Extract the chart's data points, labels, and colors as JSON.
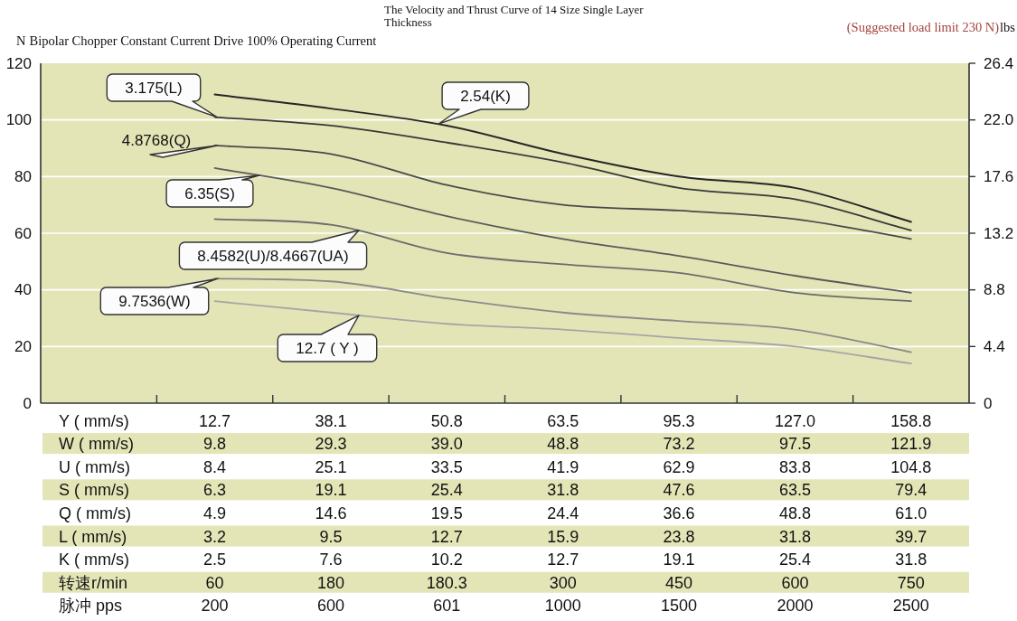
{
  "chart_data": {
    "type": "line",
    "title": "The Velocity and Thrust Curve of 14 Size Single Layer Thickness",
    "subtitle": "Bipolar Chopper Constant Current Drive 100% Operating Current",
    "ylabel": "N",
    "y2label": "lbs",
    "annotations": [
      "(Suggested load limit 230 N)"
    ],
    "categories": [
      "Y ( mm/s)\nW ( mm/s)\nU ( mm/s)\nS ( mm/s)\nQ ( mm/s)\nL ( mm/s)\nK ( mm/s)\n转速r/min\n脉冲 pps",
      "12.7\n9.8\n8.4\n6.3\n4.9\n3.2\n2.5\n60\n200",
      "38.1\n29.3\n25.1\n19.1\n14.6\n9.5\n7.6\n180\n600",
      "50.8\n39.0\n33.5\n25.4\n19.5\n12.7\n10.2\n180.3\n601",
      "63.5\n48.8\n41.9\n31.8\n24.4\n15.9\n12.7\n300\n1000",
      "95.3\n73.2\n62.9\n47.6\n36.6\n23.8\n19.1\n450\n1500",
      "127.0\n97.5\n83.8\n63.5\n48.8\n31.8\n25.4\n600\n2000",
      "158.8\n121.9\n104.8\n79.4\n61.0\n39.7\n31.8\n750\n2500"
    ],
    "series": [
      {
        "name": "2.54(K)",
        "color": "#262626",
        "values": [
          null,
          109,
          104,
          98,
          88,
          80,
          76,
          64
        ]
      },
      {
        "name": "3.175(L)",
        "color": "#383838",
        "values": [
          null,
          101,
          98,
          92,
          85,
          76,
          72,
          61
        ]
      },
      {
        "name": "4.8768(Q)",
        "color": "#4a4a4a",
        "values": [
          null,
          91,
          88,
          77,
          70,
          68,
          65,
          58
        ]
      },
      {
        "name": "6.35(S)",
        "color": "#5a5a5a",
        "values": [
          null,
          83,
          76,
          66,
          58,
          52,
          45,
          39
        ]
      },
      {
        "name": "8.4582(U)/8.4667(UA)",
        "color": "#6c6c6c",
        "values": [
          null,
          65,
          63,
          53,
          49,
          46,
          39,
          36
        ]
      },
      {
        "name": "9.7536(W)",
        "color": "#8a8a8a",
        "values": [
          null,
          44,
          43,
          37,
          32,
          29,
          26,
          18
        ]
      },
      {
        "name": "12.7 ( Y )",
        "color": "#a6a6a6",
        "values": [
          null,
          36,
          32,
          28,
          26,
          23,
          20,
          14
        ]
      }
    ],
    "ylim": [
      0,
      120
    ],
    "yticks": [
      0,
      20,
      40,
      60,
      80,
      100,
      120
    ],
    "y2lim": [
      0,
      26.4
    ],
    "y2ticks": [
      0,
      4.4,
      8.8,
      13.2,
      17.6,
      {
        "value": 22,
        "label": "22.0"
      },
      26.4
    ],
    "grid": "y",
    "line_style": "solid"
  }
}
